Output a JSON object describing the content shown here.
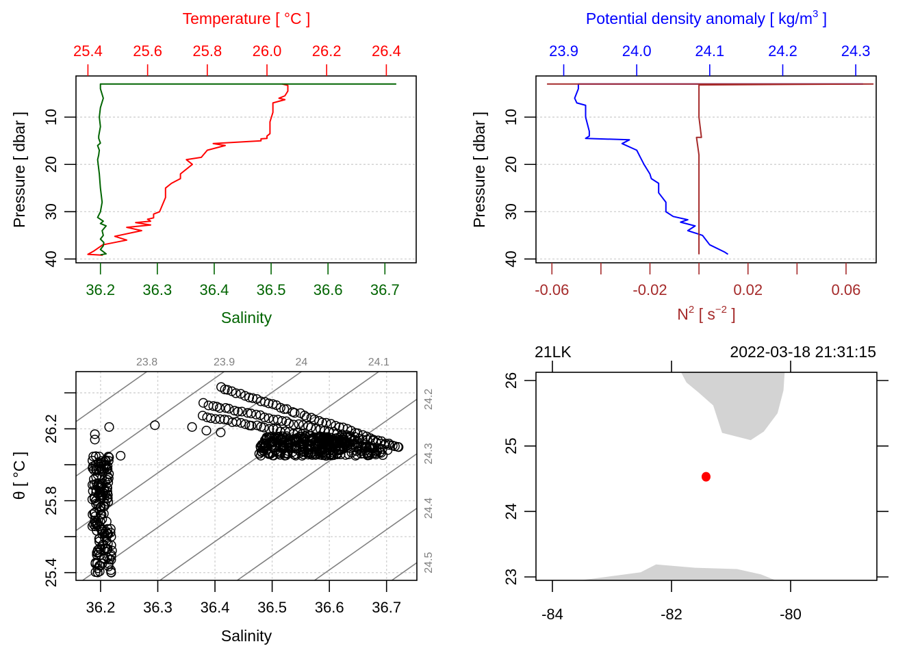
{
  "chart_data": [
    {
      "id": "profile-ts",
      "type": "line",
      "top_axis": {
        "label": "Temperature [ °C ]",
        "color": "#ff0000",
        "range": [
          25.36,
          26.5
        ],
        "ticks": [
          25.4,
          25.6,
          25.8,
          26.0,
          26.2,
          26.4
        ],
        "tick_labels": [
          "25.4",
          "25.6",
          "25.8",
          "26.0",
          "26.2",
          "26.4"
        ]
      },
      "bottom_axis": {
        "label": "Salinity",
        "color": "#006400",
        "range": [
          36.157,
          36.755
        ],
        "ticks": [
          36.2,
          36.3,
          36.4,
          36.5,
          36.6,
          36.7
        ],
        "tick_labels": [
          "36.2",
          "36.3",
          "36.4",
          "36.5",
          "36.6",
          "36.7"
        ]
      },
      "y_axis": {
        "label": "Pressure [ dbar ]",
        "range": [
          40.8,
          1.3
        ],
        "ticks": [
          10,
          20,
          30,
          40
        ],
        "tick_labels": [
          "10",
          "20",
          "30",
          "40"
        ]
      },
      "grid": "horizontal-dashed",
      "series": [
        {
          "name": "Temperature",
          "axis": "top",
          "color": "#ff0000",
          "x": [
            26.05,
            26.07,
            26.07,
            26.06,
            26.04,
            26.06,
            26.02,
            26.02,
            26.01,
            26.01,
            26.0,
            26.0,
            25.98,
            25.98,
            25.82,
            25.86,
            25.8,
            25.78,
            25.73,
            25.75,
            25.71,
            25.71,
            25.68,
            25.66,
            25.66,
            25.64,
            25.62,
            25.62,
            25.6,
            25.61,
            25.56,
            25.61,
            25.53,
            25.58,
            25.49,
            25.53,
            25.45,
            25.42,
            25.4,
            25.45
          ],
          "y": [
            3.0,
            3.3,
            4.5,
            5.5,
            6.0,
            6.3,
            7.0,
            9.0,
            11.0,
            13.5,
            14.0,
            14.5,
            14.6,
            15.0,
            15.6,
            16.0,
            17.0,
            18.5,
            19.0,
            20.0,
            22.0,
            23.0,
            24.0,
            25.0,
            27.0,
            30.0,
            30.5,
            31.3,
            31.6,
            32.0,
            32.3,
            32.8,
            33.3,
            34.0,
            35.2,
            36.0,
            37.0,
            38.3,
            39.0,
            39.2
          ]
        },
        {
          "name": "Salinity",
          "axis": "bottom",
          "color": "#006400",
          "x": [
            36.72,
            36.2,
            36.2,
            36.205,
            36.2,
            36.198,
            36.2,
            36.197,
            36.197,
            36.2,
            36.195,
            36.198,
            36.197,
            36.195,
            36.198,
            36.2,
            36.203,
            36.2,
            36.195,
            36.205,
            36.2,
            36.21,
            36.203,
            36.205,
            36.2,
            36.206,
            36.205,
            36.2,
            36.21,
            36.2
          ],
          "y": [
            3.0,
            3.0,
            4.0,
            6.0,
            8.0,
            10.0,
            12.0,
            14.0,
            14.5,
            15.5,
            16.0,
            17.0,
            18.0,
            19.0,
            22.0,
            25.0,
            28.0,
            30.0,
            31.2,
            32.0,
            32.5,
            33.0,
            34.0,
            35.0,
            35.8,
            36.5,
            37.2,
            38.0,
            38.9,
            39.1
          ]
        }
      ]
    },
    {
      "id": "profile-density-n2",
      "type": "line",
      "top_axis": {
        "label": "Potential density anomaly [ kg/m",
        "label_sup": "3",
        "label_end": " ]",
        "color": "#0000ff",
        "range": [
          23.862,
          24.328
        ],
        "ticks": [
          23.9,
          24.0,
          24.1,
          24.2,
          24.3
        ],
        "tick_labels": [
          "23.9",
          "24.0",
          "24.1",
          "24.2",
          "24.3"
        ]
      },
      "bottom_axis": {
        "label": "N",
        "label_sup": "2",
        "label_mid": " [ s",
        "label_sup2": "−2",
        "label_end": " ]",
        "color": "#a52a2a",
        "range": [
          -0.0665,
          0.0723
        ],
        "ticks": [
          -0.06,
          -0.04,
          -0.02,
          0.0,
          0.02,
          0.04,
          0.06
        ],
        "tick_labels": [
          "-0.06",
          "",
          "-0.02",
          "",
          "0.02",
          "",
          "0.06"
        ]
      },
      "y_axis": {
        "label": "Pressure [ dbar ]",
        "range": [
          40.8,
          1.3
        ],
        "ticks": [
          10,
          20,
          30,
          40
        ],
        "tick_labels": [
          "10",
          "20",
          "30",
          "40"
        ]
      },
      "grid": "horizontal-dashed",
      "series": [
        {
          "name": "Potential density anomaly",
          "axis": "top",
          "color": "#0000ff",
          "x": [
            24.31,
            23.92,
            23.92,
            23.915,
            23.918,
            23.93,
            23.93,
            23.935,
            23.935,
            23.93,
            23.99,
            23.98,
            24.0,
            24.005,
            24.01,
            24.018,
            24.02,
            24.03,
            24.03,
            24.04,
            24.04,
            24.05,
            24.07,
            24.06,
            24.08,
            24.07,
            24.09,
            24.1,
            24.12,
            24.125
          ],
          "y": [
            3.0,
            3.0,
            4.0,
            6.0,
            7.0,
            7.5,
            10.0,
            13.0,
            14.0,
            14.5,
            14.8,
            15.6,
            17.0,
            18.5,
            20.0,
            22.0,
            23.0,
            24.0,
            26.0,
            28.0,
            30.0,
            31.0,
            31.7,
            32.2,
            33.0,
            34.0,
            35.0,
            37.0,
            38.5,
            39.0
          ]
        },
        {
          "name": "N2",
          "axis": "bottom",
          "color": "#a52a2a",
          "x": [
            -0.062,
            0.071,
            0.0,
            0.0,
            0.001,
            -0.001,
            0.0,
            0.0,
            0.0,
            0.0,
            0.0
          ],
          "y": [
            3.0,
            3.0,
            3.2,
            10.0,
            14.3,
            14.3,
            18.0,
            25.0,
            32.0,
            37.0,
            39.0
          ]
        }
      ]
    },
    {
      "id": "ts-diagram",
      "type": "scatter",
      "xlabel": "Salinity",
      "ylabel": "θ [ °C ]",
      "x_axis": {
        "range": [
          36.157,
          36.753
        ],
        "ticks": [
          36.2,
          36.3,
          36.4,
          36.5,
          36.6,
          36.7
        ],
        "tick_labels": [
          "36.2",
          "36.3",
          "36.4",
          "36.5",
          "36.6",
          "36.7"
        ]
      },
      "y_axis": {
        "range": [
          25.357,
          26.518
        ],
        "ticks": [
          25.4,
          25.6,
          25.8,
          26.0,
          26.2,
          26.4
        ],
        "tick_labels": [
          "25.4",
          "",
          "25.8",
          "",
          "26.2",
          ""
        ]
      },
      "grid": "dashed",
      "isopycnals": {
        "color": "#808080",
        "levels": [
          23.8,
          23.9,
          24.0,
          24.1,
          24.2,
          24.3,
          24.4,
          24.5
        ],
        "top_labels": [
          "23.8",
          "23.9",
          "24",
          "24.1"
        ],
        "right_labels": [
          "24.2",
          "24.3",
          "24.4",
          "24.5"
        ],
        "dsigma_dS": 0.74,
        "dsigma_dT": -0.33,
        "ref": {
          "S": 36.2,
          "T": 26.2,
          "sigma": 23.845
        }
      },
      "clusters": [
        {
          "name": "deep",
          "S_range": [
            36.185,
            36.225
          ],
          "T_range": [
            25.4,
            26.05
          ]
        },
        {
          "name": "surface-band-1",
          "S_start": 36.41,
          "T_start": 26.43,
          "S_end": 36.72,
          "T_end": 26.1
        },
        {
          "name": "surface-band-2",
          "S_start": 36.38,
          "T_start": 26.34,
          "S_end": 36.72,
          "T_end": 26.1
        },
        {
          "name": "surface-band-3",
          "S_start": 36.38,
          "T_start": 26.27,
          "S_end": 36.7,
          "T_end": 26.08
        },
        {
          "name": "surface-block",
          "S_range": [
            36.47,
            36.71
          ],
          "T_range": [
            26.05,
            26.16
          ]
        }
      ],
      "isolated_points": [
        {
          "S": 36.215,
          "T": 26.21
        },
        {
          "S": 36.295,
          "T": 26.22
        },
        {
          "S": 36.36,
          "T": 26.21
        },
        {
          "S": 36.385,
          "T": 26.19
        },
        {
          "S": 36.41,
          "T": 26.18
        },
        {
          "S": 36.19,
          "T": 26.17
        },
        {
          "S": 36.19,
          "T": 26.14
        },
        {
          "S": 36.235,
          "T": 26.05
        }
      ]
    },
    {
      "id": "station-map",
      "type": "map",
      "title_left": "21LK",
      "title_right": "2022-03-18 21:31:15",
      "x_axis": {
        "range": [
          -84.27,
          -81.42
        ],
        "ticks": [
          -84,
          -82,
          -80
        ],
        "tick_labels": [
          "-84",
          "-82",
          "-80"
        ]
      },
      "y_axis": {
        "range": [
          22.94,
          26.13
        ],
        "ticks": [
          23,
          24,
          25,
          26
        ],
        "tick_labels": [
          "23",
          "24",
          "25",
          "26"
        ]
      },
      "land_color": "#d3d3d3",
      "land": [
        {
          "name": "florida",
          "lon": [
            -81.87,
            -80.1,
            -80.12,
            -80.22,
            -80.45,
            -80.67,
            -81.15,
            -81.3,
            -81.55,
            -81.75
          ],
          "lat": [
            26.13,
            26.13,
            25.85,
            25.5,
            25.22,
            25.09,
            25.2,
            25.62,
            25.82,
            25.97
          ]
        },
        {
          "name": "cuba",
          "lon": [
            -83.6,
            -82.52,
            -82.26,
            -81.6,
            -80.9,
            -80.5,
            -80.23
          ],
          "lat": [
            22.94,
            23.07,
            23.19,
            23.14,
            23.12,
            23.04,
            22.94
          ]
        }
      ],
      "station": {
        "lon": -81.42,
        "lat": 24.53,
        "color": "#ff0000"
      }
    }
  ]
}
